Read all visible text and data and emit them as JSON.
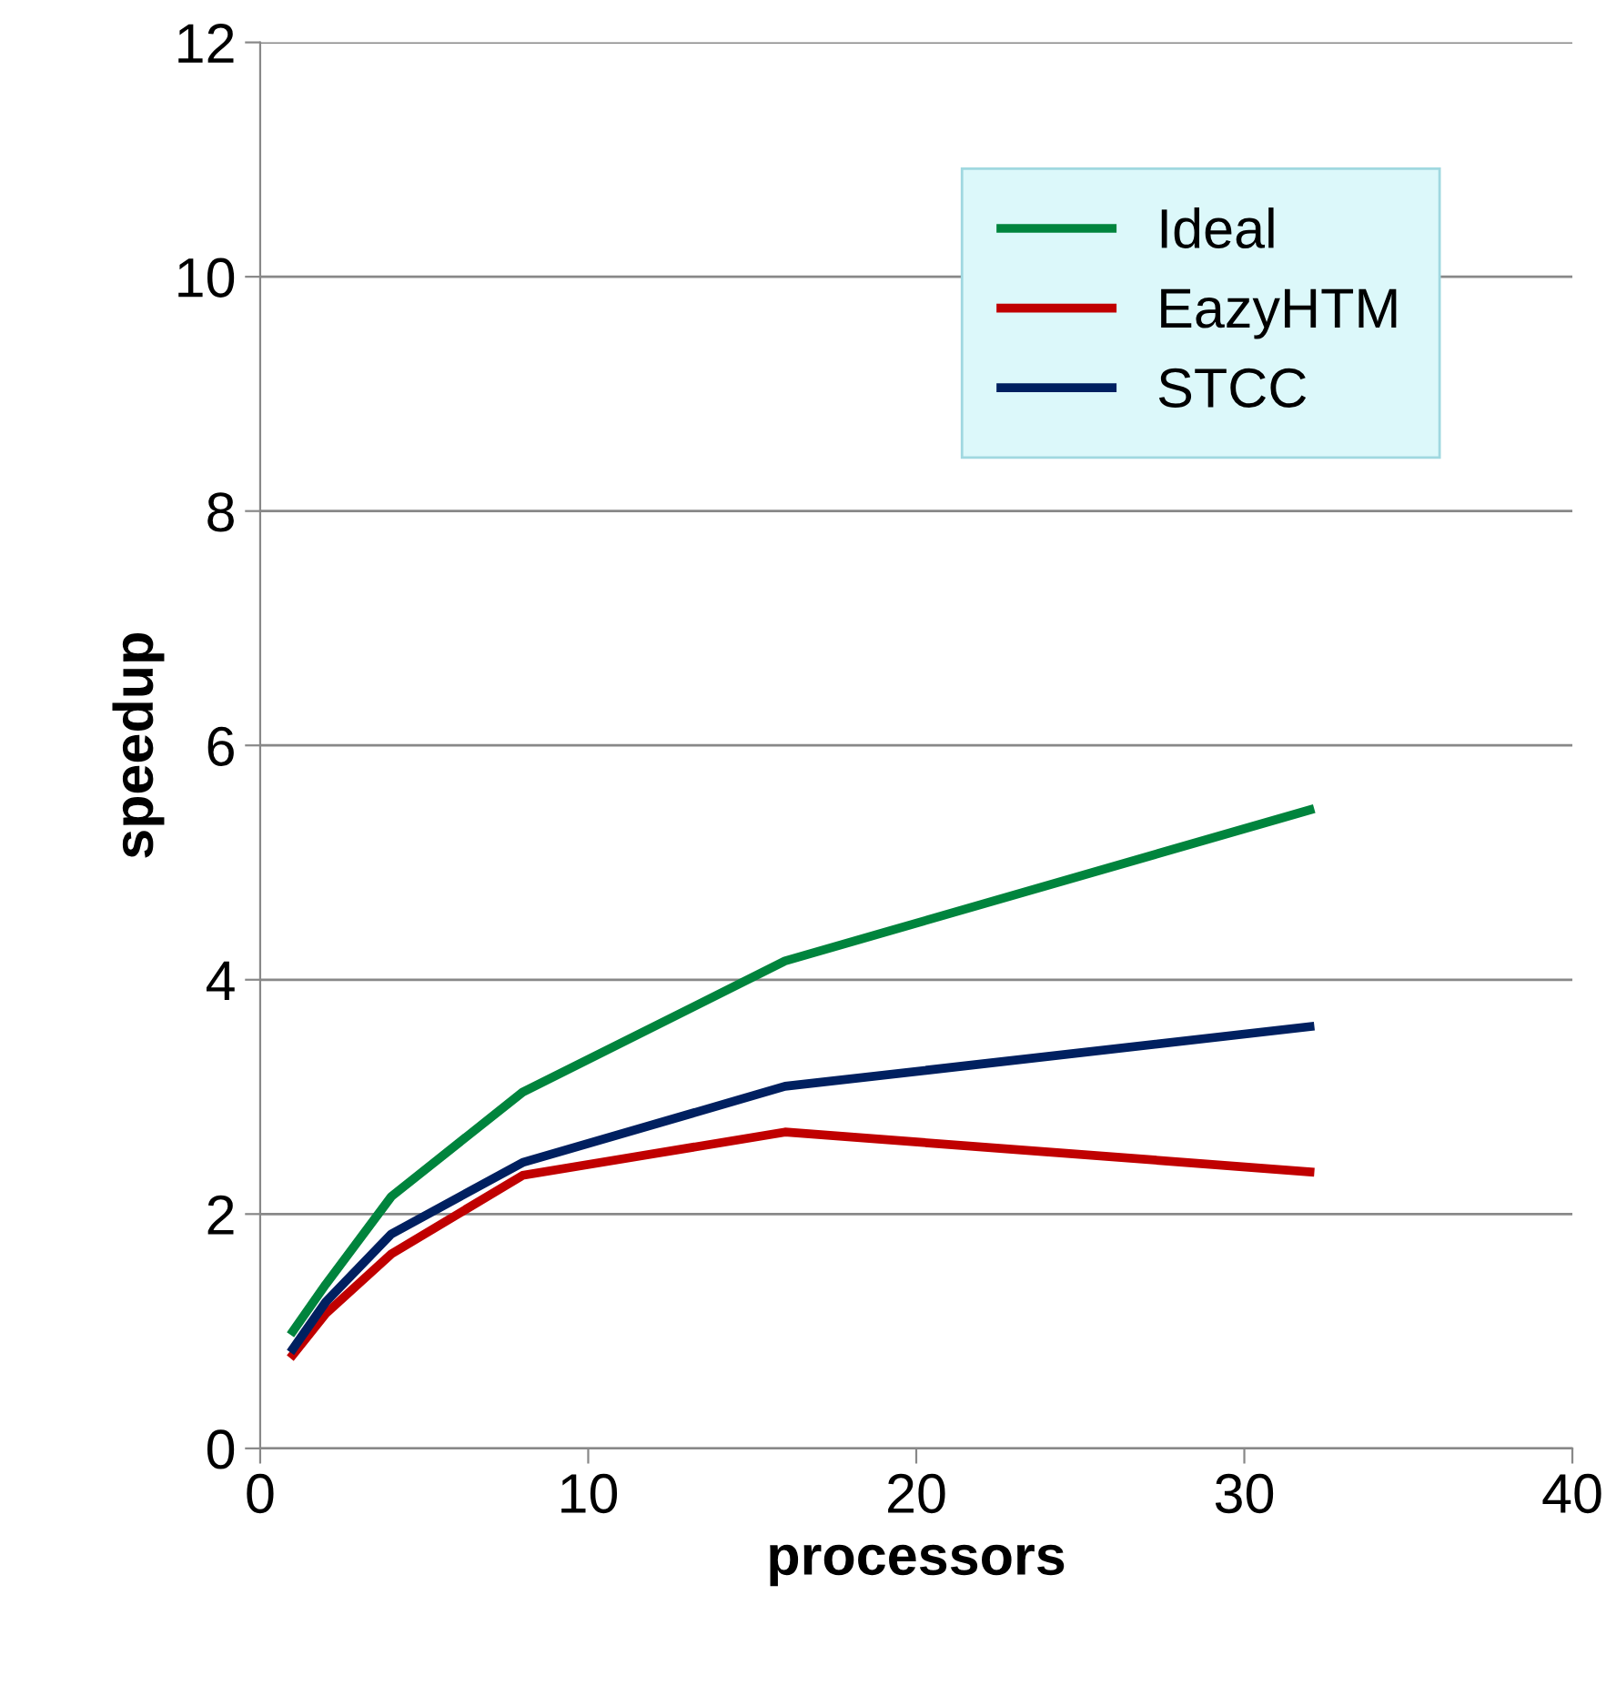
{
  "chart_data": {
    "type": "line",
    "xlabel": "processors",
    "ylabel": "speedup",
    "xlim": [
      0,
      40
    ],
    "xticks": [
      0,
      10,
      20,
      30,
      40
    ],
    "ylim": [
      0,
      12
    ],
    "yticks": [
      0,
      2,
      4,
      6,
      8,
      10,
      12
    ],
    "grid": "y",
    "legend": "top right",
    "marker": "none",
    "line_style": "solid",
    "series": [
      {
        "name": "Ideal",
        "color": "#00843d",
        "x": [
          1,
          2,
          4,
          8,
          16,
          32
        ],
        "values": [
          1.0,
          1.4,
          2.15,
          3.04,
          4.16,
          5.45
        ]
      },
      {
        "name": "EazyHTM",
        "color": "#c00000",
        "x": [
          1,
          2,
          4,
          8,
          16,
          32
        ],
        "values": [
          0.8,
          1.15,
          1.66,
          2.33,
          2.7,
          2.36
        ]
      },
      {
        "name": "STCC",
        "color": "#002060",
        "x": [
          1,
          2,
          4,
          8,
          16,
          32
        ],
        "values": [
          0.85,
          1.25,
          1.83,
          2.44,
          3.09,
          3.6
        ]
      }
    ]
  }
}
